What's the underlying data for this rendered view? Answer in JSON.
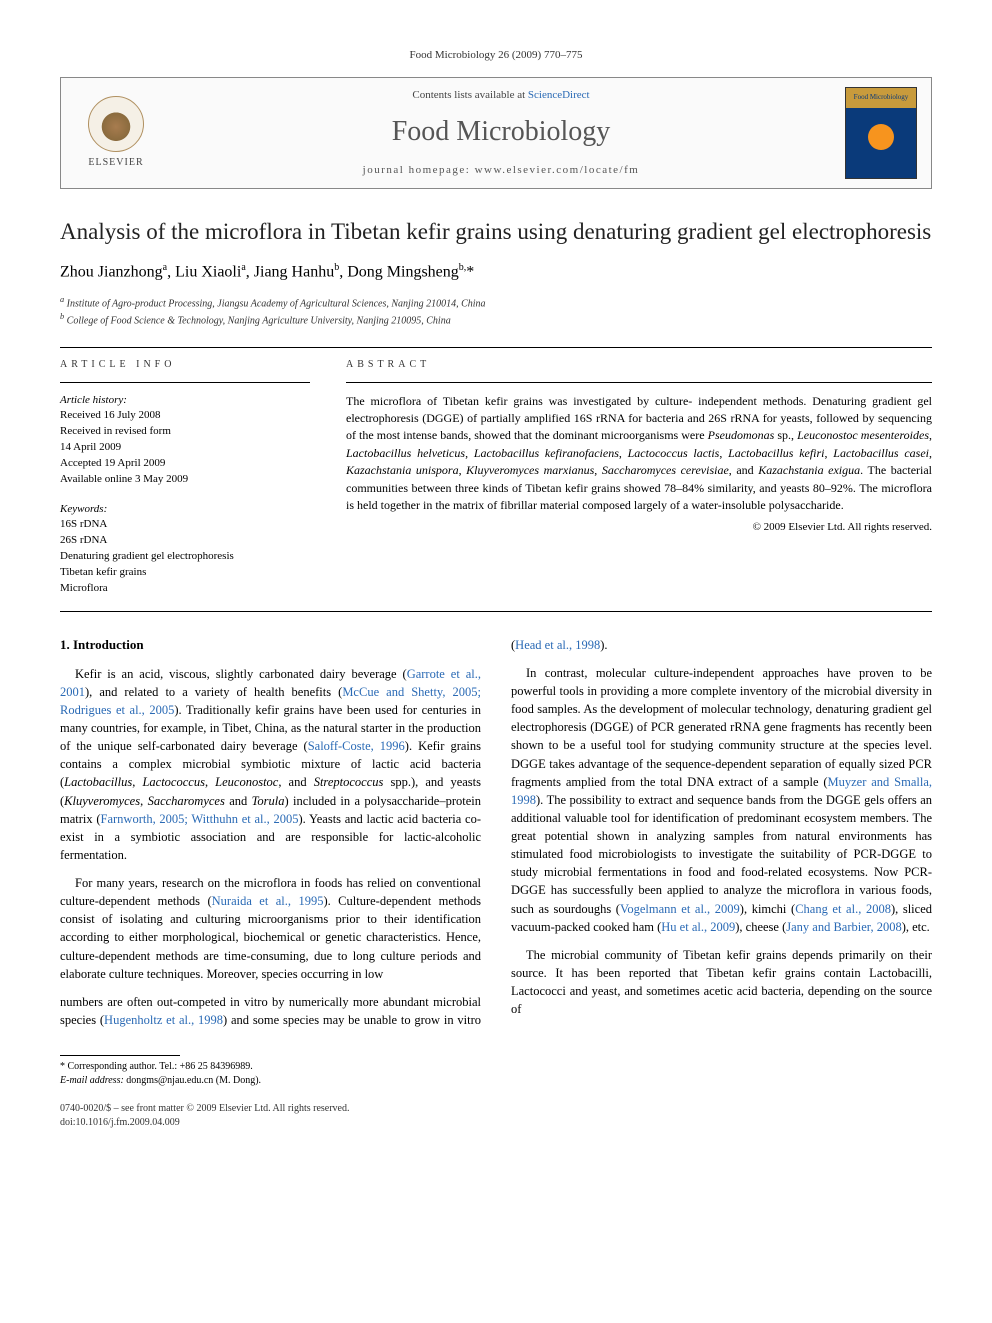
{
  "runningHead": "Food Microbiology 26 (2009) 770–775",
  "header": {
    "publisherName": "ELSEVIER",
    "contentsLinePrefix": "Contents lists available at ",
    "contentsLineLink": "ScienceDirect",
    "journalName": "Food Microbiology",
    "homepageLine": "journal homepage: www.elsevier.com/locate/fm",
    "coverTopText": "Food Microbiology"
  },
  "article": {
    "title": "Analysis of the microflora in Tibetan kefir grains using denaturing gradient gel electrophoresis",
    "authorsHtml": "Zhou Jianzhong<sup>a</sup>, Liu Xiaoli<sup>a</sup>, Jiang Hanhu<sup>b</sup>, Dong Mingsheng<sup>b,</sup>*",
    "affiliations": [
      "a Institute of Agro-product Processing, Jiangsu Academy of Agricultural Sciences, Nanjing 210014, China",
      "b College of Food Science & Technology, Nanjing Agriculture University, Nanjing 210095, China"
    ]
  },
  "info": {
    "sectionLabel": "ARTICLE INFO",
    "historyLabel": "Article history:",
    "historyLines": [
      "Received 16 July 2008",
      "Received in revised form",
      "14 April 2009",
      "Accepted 19 April 2009",
      "Available online 3 May 2009"
    ],
    "keywordsLabel": "Keywords:",
    "keywords": [
      "16S rDNA",
      "26S rDNA",
      "Denaturing gradient gel electrophoresis",
      "Tibetan kefir grains",
      "Microflora"
    ]
  },
  "abstract": {
    "sectionLabel": "ABSTRACT",
    "text": "The microflora of Tibetan kefir grains was investigated by culture- independent methods. Denaturing gradient gel electrophoresis (DGGE) of partially amplified 16S rRNA for bacteria and 26S rRNA for yeasts, followed by sequencing of the most intense bands, showed that the dominant microorganisms were Pseudomonas sp., Leuconostoc mesenteroides, Lactobacillus helveticus, Lactobacillus kefiranofaciens, Lactococcus lactis, Lactobacillus kefiri, Lactobacillus casei, Kazachstania unispora, Kluyveromyces marxianus, Saccharomyces cerevisiae, and Kazachstania exigua. The bacterial communities between three kinds of Tibetan kefir grains showed 78–84% similarity, and yeasts 80–92%. The microflora is held together in the matrix of fibrillar material composed largely of a water-insoluble polysaccharide.",
    "copyright": "© 2009 Elsevier Ltd. All rights reserved."
  },
  "body": {
    "introHeading": "1. Introduction",
    "p1": "Kefir is an acid, viscous, slightly carbonated dairy beverage (Garrote et al., 2001), and related to a variety of health benefits (McCue and Shetty, 2005; Rodrigues et al., 2005). Traditionally kefir grains have been used for centuries in many countries, for example, in Tibet, China, as the natural starter in the production of the unique self-carbonated dairy beverage (Saloff-Coste, 1996). Kefir grains contains a complex microbial symbiotic mixture of lactic acid bacteria (Lactobacillus, Lactococcus, Leuconostoc, and Streptococcus spp.), and yeasts (Kluyveromyces, Saccharomyces and Torula) included in a polysaccharide–protein matrix (Farnworth, 2005; Witthuhn et al., 2005). Yeasts and lactic acid bacteria co-exist in a symbiotic association and are responsible for lactic-alcoholic fermentation.",
    "p2": "For many years, research on the microflora in foods has relied on conventional culture-dependent methods (Nuraida et al., 1995). Culture-dependent methods consist of isolating and culturing microorganisms prior to their identification according to either morphological, biochemical or genetic characteristics. Hence, culture-dependent methods are time-consuming, due to long culture periods and elaborate culture techniques. Moreover, species occurring in low",
    "p3": "numbers are often out-competed in vitro by numerically more abundant microbial species (Hugenholtz et al., 1998) and some species may be unable to grow in vitro (Head et al., 1998).",
    "p4": "In contrast, molecular culture-independent approaches have proven to be powerful tools in providing a more complete inventory of the microbial diversity in food samples. As the development of molecular technology, denaturing gradient gel electrophoresis (DGGE) of PCR generated rRNA gene fragments has recently been shown to be a useful tool for studying community structure at the species level. DGGE takes advantage of the sequence-dependent separation of equally sized PCR fragments amplied from the total DNA extract of a sample (Muyzer and Smalla, 1998). The possibility to extract and sequence bands from the DGGE gels offers an additional valuable tool for identification of predominant ecosystem members. The great potential shown in analyzing samples from natural environments has stimulated food microbiologists to investigate the suitability of PCR-DGGE to study microbial fermentations in food and food-related ecosystems. Now PCR-DGGE has successfully been applied to analyze the microflora in various foods, such as sourdoughs (Vogelmann et al., 2009), kimchi (Chang et al., 2008), sliced vacuum-packed cooked ham (Hu et al., 2009), cheese (Jany and Barbier, 2008), etc.",
    "p5": "The microbial community of Tibetan kefir grains depends primarily on their source. It has been reported that Tibetan kefir grains contain Lactobacilli, Lactococci and yeast, and sometimes acetic acid bacteria, depending on the source of"
  },
  "footnotes": {
    "corresponding": "* Corresponding author. Tel.: +86 25 84396989.",
    "email": "E-mail address: dongms@njau.edu.cn (M. Dong)."
  },
  "bottom": {
    "issn": "0740-0020/$ – see front matter © 2009 Elsevier Ltd. All rights reserved.",
    "doi": "doi:10.1016/j.fm.2009.04.009"
  },
  "colors": {
    "link": "#2a6ab5",
    "rule": "#000000",
    "headerBg": "#fafafa",
    "coverTop": "#c89b3c",
    "coverBody": "#0a3a7a",
    "coverDot": "#f7941e"
  },
  "layout": {
    "pageWidth": 992,
    "pageHeight": 1323,
    "bodyColumns": 2,
    "columnGap": 30
  }
}
